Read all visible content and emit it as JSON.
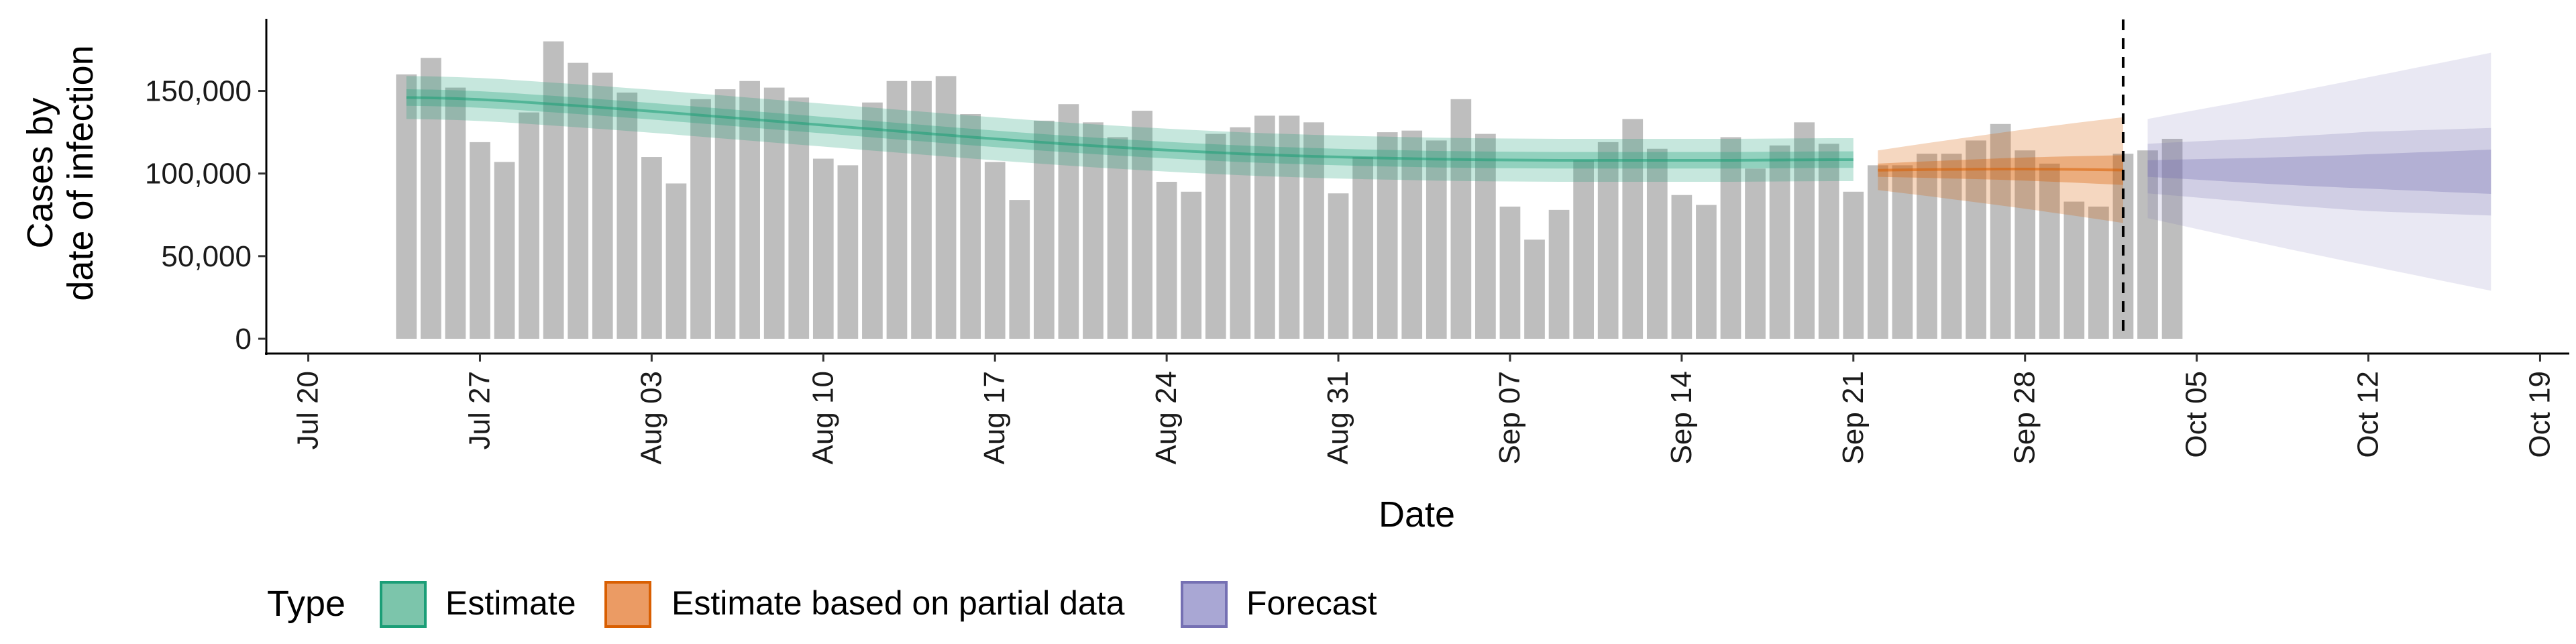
{
  "chart_data": {
    "type": "bar",
    "xlabel": "Date",
    "ylabel_lines": [
      "Cases by",
      "date of infection"
    ],
    "x_ticks": [
      "Jul 20",
      "Jul 27",
      "Aug 03",
      "Aug 10",
      "Aug 17",
      "Aug 24",
      "Aug 31",
      "Sep 07",
      "Sep 14",
      "Sep 21",
      "Sep 28",
      "Oct 05",
      "Oct 12",
      "Oct 19"
    ],
    "y_ticks": [
      "0",
      "50,000",
      "100,000",
      "150,000"
    ],
    "y_tick_values": [
      0,
      50000,
      100000,
      150000
    ],
    "ylim": [
      0,
      190000
    ],
    "xlim": [
      "2020-07-19",
      "2020-10-20"
    ],
    "reference_line_date": "2020-10-02",
    "bars": {
      "start_date": "2020-07-24",
      "values": [
        160000,
        170000,
        152000,
        119000,
        107000,
        137000,
        180000,
        167000,
        161000,
        149000,
        110000,
        94000,
        145000,
        151000,
        156000,
        152000,
        146000,
        109000,
        105000,
        143000,
        156000,
        156000,
        159000,
        136000,
        107000,
        84000,
        132000,
        142000,
        131000,
        122000,
        138000,
        95000,
        89000,
        124000,
        128000,
        135000,
        135000,
        131000,
        88000,
        110000,
        125000,
        126000,
        120000,
        145000,
        124000,
        80000,
        60000,
        78000,
        108000,
        119000,
        133000,
        115000,
        87000,
        81000,
        122000,
        103000,
        117000,
        131000,
        118000,
        89000,
        105000,
        105000,
        112000,
        112000,
        120000,
        130000,
        114000,
        106000,
        83000,
        80000,
        112000,
        114000,
        121000
      ]
    },
    "series": [
      {
        "name": "Estimate",
        "color": "#1b9e77",
        "start_date": "2020-07-24",
        "median": [
          146000,
          145800,
          145400,
          144800,
          144000,
          143000,
          142000,
          141000,
          139900,
          138800,
          137700,
          136500,
          135300,
          134100,
          132900,
          131700,
          130500,
          129300,
          128100,
          126900,
          125700,
          124500,
          123300,
          122100,
          121000,
          119900,
          118800,
          117800,
          116800,
          115900,
          115000,
          114200,
          113400,
          112700,
          112000,
          111400,
          110900,
          110400,
          110000,
          109600,
          109300,
          109000,
          108700,
          108500,
          108300,
          108200,
          108100,
          108000,
          108000,
          108000,
          108000,
          108000,
          108000,
          108000,
          108000,
          108100,
          108200,
          108300,
          108400,
          108400
        ],
        "inner_half_width": [
          5000,
          5000,
          5000,
          5000,
          5000,
          5000,
          5000,
          5000,
          5000,
          5000,
          5000,
          5000,
          5000,
          5000,
          5000,
          5000,
          5000,
          5000,
          5000,
          5000,
          5000,
          5000,
          5000,
          5000,
          5000,
          5000,
          5000,
          5000,
          5000,
          5000,
          5000,
          5000,
          5000,
          5000,
          5000,
          5000,
          5000,
          5000,
          5000,
          5000,
          5000,
          5000,
          5000,
          5000,
          5000,
          5000,
          5000,
          5000,
          5000,
          5000,
          5000,
          5000,
          5000,
          5000,
          5000,
          5000,
          5000,
          5000,
          5000,
          5000
        ],
        "outer_half_width": [
          13000,
          13000,
          13000,
          13000,
          13000,
          13000,
          13000,
          13000,
          13000,
          13000,
          13000,
          13000,
          13000,
          13000,
          13000,
          13000,
          13000,
          13000,
          13000,
          13000,
          13000,
          13000,
          13000,
          13000,
          13000,
          13000,
          13000,
          13000,
          13000,
          13000,
          13000,
          13000,
          13000,
          13000,
          13000,
          13000,
          13000,
          13000,
          13000,
          13000,
          13000,
          13000,
          13000,
          13000,
          13000,
          13000,
          13000,
          13000,
          13000,
          13000,
          13000,
          13000,
          13000,
          13000,
          13000,
          13000,
          13000,
          13000,
          13000,
          13000
        ]
      },
      {
        "name": "Estimate based on partial data",
        "color": "#d95f02",
        "start_date": "2020-09-22",
        "median": [
          102000,
          102200,
          102400,
          102500,
          102600,
          102700,
          102700,
          102600,
          102500,
          102300,
          102100
        ],
        "inner_half_width": [
          4000,
          4500,
          5000,
          5500,
          6000,
          6500,
          7000,
          7500,
          8000,
          8500,
          9000
        ],
        "outer_half_width": [
          12000,
          14000,
          16000,
          18000,
          20000,
          22000,
          24000,
          26000,
          28000,
          30000,
          32000
        ]
      },
      {
        "name": "Forecast",
        "color": "#7570b3",
        "start_date": "2020-10-03",
        "median": [
          103000,
          102800,
          102500,
          102200,
          101900,
          101700,
          101500,
          101400,
          101300,
          101300,
          101200,
          101200,
          101100,
          101100,
          101100
        ],
        "inner_half_width": [
          5000,
          5600,
          6200,
          6800,
          7400,
          8000,
          8600,
          9200,
          9800,
          10400,
          11000,
          11600,
          12200,
          12800,
          13400
        ],
        "mid_half_width": [
          15000,
          16000,
          17000,
          18000,
          19000,
          20000,
          21000,
          22000,
          23000,
          24000,
          24500,
          25000,
          25500,
          26000,
          26500
        ],
        "outer_half_width": [
          30000,
          33000,
          36000,
          39000,
          42000,
          45000,
          48000,
          51000,
          54000,
          57000,
          60000,
          63000,
          66000,
          69000,
          72000
        ]
      }
    ],
    "legend": {
      "title": "Type",
      "position": "bottom",
      "items": [
        {
          "label": "Estimate",
          "color": "#1b9e77"
        },
        {
          "label": "Estimate based on partial data",
          "color": "#d95f02"
        },
        {
          "label": "Forecast",
          "color": "#7570b3"
        }
      ]
    },
    "grid": false
  }
}
